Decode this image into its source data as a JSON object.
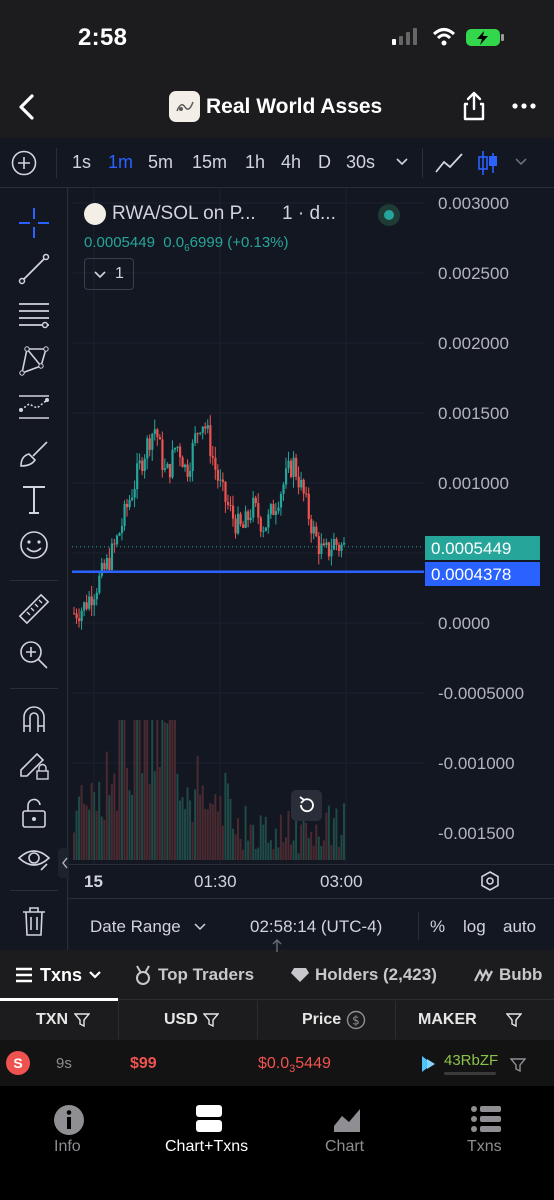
{
  "status_bar": {
    "time": "2:58"
  },
  "header": {
    "title": "Real World Asses"
  },
  "timeframes": {
    "items": [
      "1s",
      "1m",
      "5m",
      "15m",
      "1h",
      "4h",
      "D",
      "30s"
    ],
    "active": "1m"
  },
  "legend": {
    "symbol": "RWA/SOL on P...",
    "interval": "1 · d...",
    "price": "0.0005449",
    "change_base": "0.0",
    "change_sub": "6",
    "change_rest": "6999 (+0.13%)",
    "collapse_count": "1"
  },
  "y_axis": {
    "labels": [
      "0.003000",
      "0.002500",
      "0.002000",
      "0.001500",
      "0.001000",
      "0.0000",
      "-0.0005000",
      "-0.001000",
      "-0.001500"
    ]
  },
  "x_axis": {
    "labels": [
      "15",
      "01:30",
      "03:00"
    ]
  },
  "price_tags": {
    "last": "0.0005449",
    "line": "0.0004378"
  },
  "bottom_controls": {
    "date_range": "Date Range",
    "clock": "02:58:14 (UTC-4)",
    "percent": "%",
    "log": "log",
    "auto": "auto"
  },
  "tabs": {
    "txns": "Txns",
    "top_traders": "Top Traders",
    "holders": "Holders (2,423)",
    "bubbles": "Bubb"
  },
  "table": {
    "headers": {
      "txn": "TXN",
      "usd": "USD",
      "price": "Price",
      "maker": "MAKER"
    },
    "row": {
      "type": "S",
      "age": "9s",
      "usd": "$99",
      "price_base": "$0.0",
      "price_sub": "3",
      "price_rest": "5449",
      "maker": "43RbZF"
    }
  },
  "bottom_nav": {
    "info": "Info",
    "chart_txns": "Chart+Txns",
    "chart": "Chart",
    "txns": "Txns"
  },
  "colors": {
    "up": "#26a69a",
    "down": "#ef5350",
    "line": "#2962ff",
    "accent": "#2962ff",
    "background": "#131722"
  },
  "chart_data": {
    "type": "candlestick",
    "symbol": "RWA/SOL",
    "last_price": 0.0005449,
    "horizontal_line": 0.0004378,
    "ylim": [
      -0.0017,
      0.003
    ],
    "close_series": [
      7e-05,
      9e-05,
      0.00012,
      0.00018,
      0.00024,
      0.00031,
      0.00038,
      0.00046,
      0.00055,
      0.00066,
      0.00078,
      0.0009,
      0.00101,
      0.00113,
      0.00124,
      0.00134,
      0.0014,
      0.00121,
      0.00105,
      0.00113,
      0.00128,
      0.00122,
      0.00108,
      0.0012,
      0.00135,
      0.00146,
      0.00138,
      0.00122,
      0.00106,
      0.00094,
      0.00085,
      0.00077,
      0.0007,
      0.00066,
      0.00074,
      0.00083,
      0.00078,
      0.0007,
      0.00072,
      0.00081,
      0.0009,
      0.00098,
      0.00107,
      0.00115,
      0.00104,
      0.00092,
      0.00078,
      0.00065,
      0.00056,
      0.00049,
      0.00052,
      0.00058,
      0.00055,
      0.0005449
    ]
  }
}
